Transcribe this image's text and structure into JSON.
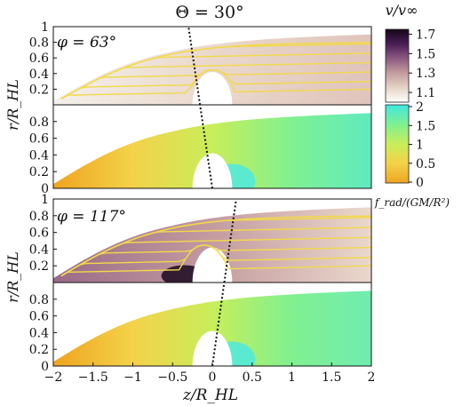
{
  "chart_data": {
    "type": "heatmap",
    "title": "Θ = 30°",
    "xlabel": "z/R_HL",
    "ylabel": "r/R_HL",
    "xlim": [
      -2,
      2
    ],
    "ylim": [
      0,
      1
    ],
    "x_ticks": [
      "−2",
      "−1.5",
      "−1",
      "−0.5",
      "0",
      "0.5",
      "1",
      "1.5",
      "2"
    ],
    "x_tick_values": [
      -2,
      -1.5,
      -1,
      -0.5,
      0,
      0.5,
      1,
      1.5,
      2
    ],
    "y_ticks_top": [
      "0.2",
      "0.4",
      "0.6",
      "0.8",
      "1"
    ],
    "y_tick_values_top": [
      0.2,
      0.4,
      0.6,
      0.8,
      1.0
    ],
    "y_ticks_bottom": [
      "0",
      "0.2",
      "0.4",
      "0.6",
      "0.8"
    ],
    "y_tick_values_bottom": [
      0,
      0.2,
      0.4,
      0.6,
      0.8
    ],
    "groups": [
      {
        "phi_label": "φ = 63°",
        "line_of_sight": {
          "bottom_z": 0.0,
          "top_z": -0.3
        },
        "panels": [
          {
            "quantity": "v/v∞",
            "colorbar": "velocity"
          },
          {
            "quantity": "f_rad/(GM/R²)",
            "colorbar": "force"
          }
        ]
      },
      {
        "phi_label": "φ = 117°",
        "line_of_sight": {
          "bottom_z": 0.0,
          "top_z": 0.3
        },
        "panels": [
          {
            "quantity": "v/v∞",
            "colorbar": "velocity"
          },
          {
            "quantity": "f_rad/(GM/R²)",
            "colorbar": "force"
          }
        ]
      }
    ],
    "colorbars": {
      "velocity": {
        "label": "v/v∞",
        "ticks": [
          "1.7",
          "1.5",
          "1.3",
          "1.1"
        ],
        "tick_values": [
          1.7,
          1.5,
          1.3,
          1.1
        ],
        "range": [
          1.0,
          1.75
        ],
        "colors": [
          "#ffffff",
          "#e4d4c4",
          "#c49ca0",
          "#8c5a80",
          "#4a1e56",
          "#140618"
        ]
      },
      "force": {
        "label": "f_rad/(GM/R²)",
        "ticks": [
          "2",
          "1.5",
          "1",
          "0.5",
          "0"
        ],
        "tick_values": [
          2,
          1.5,
          1,
          0.5,
          0
        ],
        "range": [
          0,
          2
        ],
        "colors": [
          "#eea420",
          "#f4d24a",
          "#c8ee5a",
          "#80f090",
          "#40e8e0"
        ]
      }
    }
  }
}
